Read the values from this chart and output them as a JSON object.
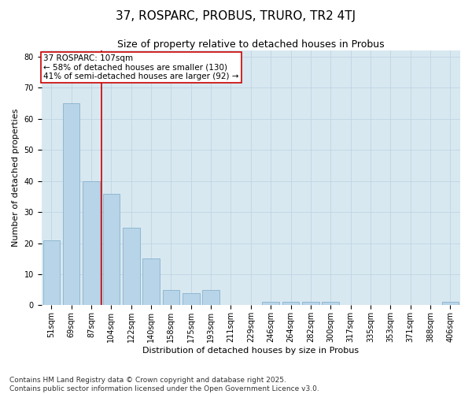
{
  "title": "37, ROSPARC, PROBUS, TRURO, TR2 4TJ",
  "subtitle": "Size of property relative to detached houses in Probus",
  "xlabel": "Distribution of detached houses by size in Probus",
  "ylabel": "Number of detached properties",
  "categories": [
    "51sqm",
    "69sqm",
    "87sqm",
    "104sqm",
    "122sqm",
    "140sqm",
    "158sqm",
    "175sqm",
    "193sqm",
    "211sqm",
    "229sqm",
    "246sqm",
    "264sqm",
    "282sqm",
    "300sqm",
    "317sqm",
    "335sqm",
    "353sqm",
    "371sqm",
    "388sqm",
    "406sqm"
  ],
  "values": [
    21,
    65,
    40,
    36,
    25,
    15,
    5,
    4,
    5,
    0,
    0,
    1,
    1,
    1,
    1,
    0,
    0,
    0,
    0,
    0,
    1
  ],
  "bar_color": "#b8d4e8",
  "bar_edge_color": "#7aaac8",
  "vline_x_index": 3,
  "vline_color": "#cc0000",
  "annotation_text": "37 ROSPARC: 107sqm\n← 58% of detached houses are smaller (130)\n41% of semi-detached houses are larger (92) →",
  "annotation_box_color": "#ffffff",
  "annotation_box_edge_color": "#cc0000",
  "ylim": [
    0,
    82
  ],
  "yticks": [
    0,
    10,
    20,
    30,
    40,
    50,
    60,
    70,
    80
  ],
  "grid_color": "#c0d4e4",
  "background_color": "#d8e8f0",
  "footer_text": "Contains HM Land Registry data © Crown copyright and database right 2025.\nContains public sector information licensed under the Open Government Licence v3.0.",
  "title_fontsize": 11,
  "subtitle_fontsize": 9,
  "axis_label_fontsize": 8,
  "tick_fontsize": 7,
  "annotation_fontsize": 7.5,
  "footer_fontsize": 6.5,
  "vline_position": 2.5
}
